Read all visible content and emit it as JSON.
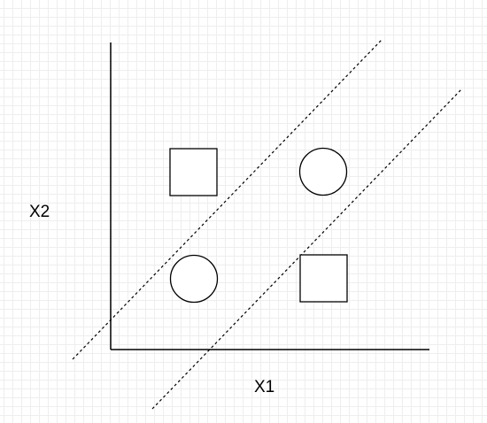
{
  "diagram": {
    "x_axis_label": "X1",
    "y_axis_label": "X2",
    "shapes": [
      {
        "kind": "square",
        "name": "square-top-left"
      },
      {
        "kind": "circle",
        "name": "circle-top-right"
      },
      {
        "kind": "circle",
        "name": "circle-bottom-left"
      },
      {
        "kind": "square",
        "name": "square-bottom-right"
      }
    ],
    "stroke_color": "#000000",
    "grid_color": "#eeeeee",
    "margin_lines": "dashed"
  }
}
